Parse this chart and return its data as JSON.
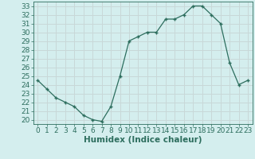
{
  "x": [
    0,
    1,
    2,
    3,
    4,
    5,
    6,
    7,
    8,
    9,
    10,
    11,
    12,
    13,
    14,
    15,
    16,
    17,
    18,
    19,
    20,
    21,
    22,
    23
  ],
  "y": [
    24.5,
    23.5,
    22.5,
    22.0,
    21.5,
    20.5,
    20.0,
    19.8,
    21.5,
    25.0,
    29.0,
    29.5,
    30.0,
    30.0,
    31.5,
    31.5,
    32.0,
    33.0,
    33.0,
    32.0,
    31.0,
    26.5,
    24.0,
    24.5
  ],
  "xlabel": "Humidex (Indice chaleur)",
  "xlim": [
    -0.5,
    23.5
  ],
  "ylim": [
    19.5,
    33.5
  ],
  "yticks": [
    20,
    21,
    22,
    23,
    24,
    25,
    26,
    27,
    28,
    29,
    30,
    31,
    32,
    33
  ],
  "xticks": [
    0,
    1,
    2,
    3,
    4,
    5,
    6,
    7,
    8,
    9,
    10,
    11,
    12,
    13,
    14,
    15,
    16,
    17,
    18,
    19,
    20,
    21,
    22,
    23
  ],
  "line_color": "#2d6e5e",
  "marker_color": "#2d6e5e",
  "bg_color": "#d4eeee",
  "grid_color": "#c8d8d8",
  "tick_label_color": "#2d6e5e",
  "axis_label_color": "#2d6e5e",
  "font_size": 6.5
}
